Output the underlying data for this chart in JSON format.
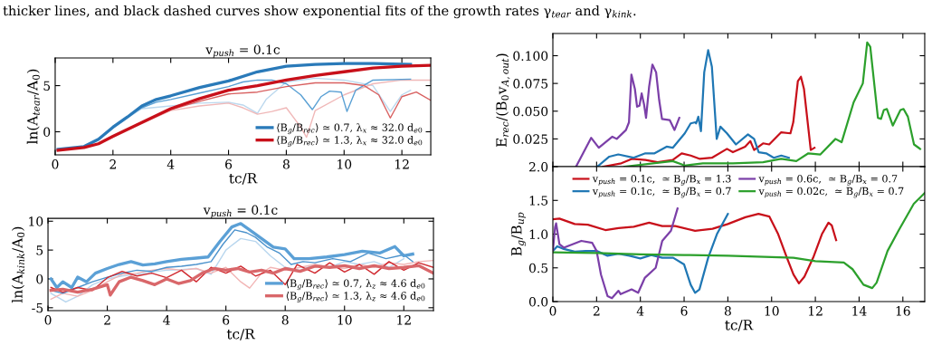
{
  "chart_data": [
    {
      "type": "line",
      "title": "v$_{push}$ = 0.1c",
      "xlabel": "tc/R",
      "ylabel": "ln(A$_{tear}$/A$_{0}$)",
      "annotations": [
        "thicker lines, and black dashed curves show exponential fits of the growth rates γ$_{tear}$ and γ$_{kink}$."
      ],
      "xlim": [
        0,
        13
      ],
      "xticks": [
        0,
        2,
        4,
        6,
        8,
        10,
        12
      ],
      "ylim": [
        -2.5,
        8
      ],
      "yticks": [
        0,
        5
      ],
      "legend": "bottom right",
      "grid": false,
      "series": [
        {
          "color": "#bcd8ee",
          "x": [
            0.1,
            1,
            1.5,
            2,
            2.5,
            3,
            4,
            5,
            6,
            6.5,
            7,
            7.3,
            8,
            9,
            10,
            11,
            11.6,
            12,
            12.3
          ],
          "values": [
            -1.9,
            -1.6,
            -0.8,
            0.4,
            1.5,
            2.5,
            2.8,
            3.1,
            3.2,
            2.9,
            2.0,
            3.5,
            5.4,
            5.8,
            5.6,
            5.0,
            2.2,
            4.0,
            4.5
          ]
        },
        {
          "color": "#f0b8b8",
          "x": [
            0.1,
            1,
            1.5,
            2,
            3,
            4,
            5,
            6,
            6.5,
            7,
            7.5,
            8,
            8.5,
            8.7,
            9,
            10,
            11,
            12,
            13
          ],
          "values": [
            -2.0,
            -1.7,
            -1.3,
            -0.6,
            0.9,
            2.3,
            2.8,
            3.1,
            2.6,
            1.9,
            2.2,
            2.6,
            0.5,
            -0.6,
            2.3,
            4.0,
            5.2,
            5.6,
            5.6
          ]
        },
        {
          "color": "#5aa0d4",
          "x": [
            0.1,
            1,
            1.5,
            2,
            2.5,
            3,
            3.5,
            4,
            5,
            6,
            6.5,
            7,
            7.5,
            8,
            8.5,
            8.9,
            9.2,
            9.5,
            9.9,
            10.1,
            10.4,
            11,
            12.3
          ],
          "values": [
            -1.9,
            -1.6,
            -0.8,
            0.5,
            1.6,
            2.6,
            3.2,
            3.5,
            4.2,
            4.9,
            5.4,
            5.6,
            5.6,
            5.2,
            4.0,
            2.4,
            3.8,
            4.4,
            4.3,
            2.2,
            4.5,
            5.6,
            5.7
          ]
        },
        {
          "color": "#d86060",
          "x": [
            0.1,
            1,
            1.5,
            2,
            3,
            4,
            5,
            6,
            7,
            8,
            9,
            10,
            10.7,
            11.2,
            11.6,
            12,
            12.5,
            13
          ],
          "values": [
            -2.0,
            -1.7,
            -1.3,
            -0.5,
            1.0,
            2.4,
            3.3,
            4.1,
            4.3,
            4.9,
            5.3,
            5.3,
            5.0,
            4.0,
            1.5,
            3.8,
            4.3,
            3.4
          ]
        },
        {
          "name": "⟨B$_{g}$/B$_{rec}$⟩ ≃ 0.7, λ$_{x}$ ≈ 32.0 d$_{e0}$",
          "color": "#2a7ab9",
          "x": [
            0.1,
            1,
            1.5,
            2,
            2.5,
            3,
            3.5,
            4,
            5,
            6,
            7,
            8,
            9,
            10,
            11,
            12.3
          ],
          "values": [
            -1.9,
            -1.6,
            -0.8,
            0.5,
            1.6,
            2.8,
            3.5,
            3.9,
            4.8,
            5.5,
            6.5,
            7.1,
            7.3,
            7.4,
            7.4,
            7.3
          ]
        },
        {
          "name": "⟨B$_{g}$/B$_{rec}$⟩ ≃ 1.3, λ$_{x}$ ≈ 32.0 d$_{e0}$",
          "color": "#c8101a",
          "x": [
            0.1,
            1,
            1.5,
            2,
            3,
            4,
            5,
            6,
            7,
            8,
            9,
            10,
            11,
            12,
            13
          ],
          "values": [
            -2.0,
            -1.7,
            -1.3,
            -0.5,
            1.0,
            2.5,
            3.6,
            4.5,
            5.0,
            5.6,
            6.1,
            6.5,
            6.9,
            7.1,
            7.2
          ]
        }
      ]
    },
    {
      "type": "line",
      "title": "v$_{push}$ = 0.1c",
      "xlabel": "tc/R",
      "ylabel": "ln(A$_{kink}$/A$_{0}$)",
      "xlim": [
        0,
        13
      ],
      "xticks": [
        0,
        2,
        4,
        6,
        8,
        10,
        12
      ],
      "ylim": [
        -5.5,
        10.5
      ],
      "yticks": [
        -5,
        0,
        5,
        10
      ],
      "legend": "bottom right",
      "grid": false,
      "series": [
        {
          "color": "#b8d6ee",
          "x": [
            0.1,
            0.6,
            1,
            1.5,
            2,
            2.5,
            3,
            3.5,
            4,
            4.5,
            5,
            5.5,
            6,
            6.5,
            7,
            7.5,
            8,
            8.5,
            9,
            9.5,
            10,
            10.5,
            11,
            11.5,
            12
          ],
          "values": [
            -2.5,
            -4.0,
            -3.0,
            -1.0,
            0,
            0.5,
            0.8,
            1.2,
            1.5,
            1.6,
            1.8,
            0.8,
            5.0,
            7.0,
            6.5,
            4.0,
            2.0,
            1.5,
            2.5,
            2.0,
            3.0,
            2.5,
            3.0,
            2.0,
            3.5
          ]
        },
        {
          "color": "#f2b5b5",
          "x": [
            0.1,
            0.5,
            1,
            1.5,
            2,
            2.5,
            3,
            3.5,
            4,
            4.5,
            5,
            5.5,
            6,
            6.5,
            6.8,
            7.2,
            7.5,
            8,
            8.5,
            9,
            9.5,
            10,
            10.5,
            11,
            11.5,
            12,
            12.5,
            13
          ],
          "values": [
            -3.5,
            -2.5,
            -3.0,
            -2.0,
            -0.5,
            0.8,
            1.0,
            1.5,
            1.8,
            1.5,
            1.8,
            1.0,
            2.0,
            -0.5,
            -1.6,
            1.0,
            2.0,
            1.5,
            2.0,
            2.5,
            2.0,
            1.8,
            2.5,
            2.0,
            2.8,
            2.5,
            3.0,
            3.2
          ]
        },
        {
          "color": "#4b92cc",
          "x": [
            0.1,
            0.5,
            1,
            1.5,
            2,
            2.5,
            3,
            3.5,
            4,
            4.5,
            5,
            5.5,
            5.9,
            6.3,
            6.7,
            7,
            7.4,
            7.8,
            8.2,
            8.6,
            9,
            9.6,
            10.2,
            10.8,
            11.4,
            12,
            12.3
          ],
          "values": [
            -2.0,
            -2.5,
            -1.5,
            -0.5,
            0.3,
            1.0,
            1.5,
            1.3,
            2.0,
            2.2,
            2.5,
            3.0,
            6.0,
            8.5,
            8.0,
            7.2,
            5.5,
            4.5,
            2.5,
            3.0,
            2.8,
            3.5,
            3.0,
            4.5,
            3.5,
            4.2,
            3.0
          ]
        },
        {
          "color": "#d0282e",
          "x": [
            0.1,
            0.5,
            1,
            1.5,
            2,
            2.5,
            3,
            3.5,
            4,
            4.5,
            5,
            5.5,
            6,
            6.5,
            7,
            7.5,
            8,
            8.4,
            9,
            9.5,
            10,
            10.5,
            11,
            11.5,
            12,
            12.5,
            13
          ],
          "values": [
            -1.5,
            -2.3,
            -1.5,
            -2.0,
            0.2,
            1.3,
            0.5,
            1.0,
            0.2,
            1.5,
            -0.5,
            2.0,
            1.0,
            2.2,
            0.5,
            1.5,
            -1.0,
            2.5,
            1.0,
            2.8,
            1.2,
            2.5,
            0.8,
            3.0,
            1.5,
            2.8,
            2.0
          ]
        },
        {
          "name": "⟨B$_{g}$/B$_{rec}$⟩ ≃ 0.7, λ$_{z}$ ≈ 4.6 d$_{e0}$",
          "color": "#5ba0d6",
          "x": [
            0.1,
            0.3,
            0.5,
            0.8,
            1,
            1.3,
            1.6,
            2,
            2.4,
            2.8,
            3.2,
            3.6,
            4,
            4.5,
            5,
            5.4,
            5.8,
            6.2,
            6.5,
            6.8,
            7.2,
            7.6,
            8,
            8.3,
            8.8,
            9.4,
            10,
            10.6,
            11.2,
            11.7,
            12,
            12.3
          ],
          "values": [
            0,
            -1.5,
            -0.5,
            -1.5,
            0.3,
            -0.5,
            1.0,
            1.8,
            2.5,
            3.0,
            2.4,
            2.6,
            3.0,
            3.4,
            3.6,
            3.8,
            6.5,
            9.0,
            9.6,
            8.5,
            7.0,
            5.5,
            5.2,
            3.5,
            3.5,
            3.8,
            4.2,
            4.8,
            4.5,
            5.6,
            4.0,
            4.3
          ]
        },
        {
          "name": "⟨B$_{g}$/B$_{rec}$⟩ ≃ 1.3, λ$_{z}$ ≈ 4.6 d$_{e0}$",
          "color": "#d9676a",
          "x": [
            0.1,
            0.5,
            1,
            1.5,
            2,
            2.1,
            2.4,
            2.8,
            3.2,
            3.6,
            4,
            4.4,
            4.8,
            5.2,
            5.6,
            6,
            6.4,
            6.8,
            7.2,
            7.6,
            8,
            8.5,
            9,
            9.5,
            10,
            10.5,
            11,
            11.5,
            12,
            12.5,
            13
          ],
          "values": [
            -2.0,
            -1.8,
            -2.3,
            -1.8,
            -1.0,
            -2.8,
            -0.5,
            0.3,
            -0.3,
            -1.0,
            0,
            -0.8,
            -0.3,
            1.0,
            1.8,
            1.5,
            1.8,
            1.2,
            1.5,
            1.0,
            1.8,
            1.3,
            2.2,
            2.0,
            2.3,
            1.8,
            2.3,
            1.8,
            2.0,
            2.3,
            1.0
          ]
        }
      ]
    },
    {
      "type": "line",
      "ylabel": "E$_{rec}$/(B$_{0}$v$_{A,out}$)",
      "tick_labels": "y",
      "grid": false,
      "xlim": [
        0,
        17
      ],
      "xticks": [
        {
          "value": 0,
          "label": null
        },
        {
          "value": 2,
          "label": null
        },
        {
          "value": 4,
          "label": null
        },
        {
          "value": 6,
          "label": null
        },
        {
          "value": 8,
          "label": null
        },
        {
          "value": 10,
          "label": null
        },
        {
          "value": 12,
          "label": null
        },
        {
          "value": 14,
          "label": null
        },
        {
          "value": 16,
          "label": null
        }
      ],
      "ylim": [
        0,
        0.12
      ],
      "yticks": [
        {
          "value": 0.025,
          "label": "0.025"
        },
        {
          "value": 0.05,
          "label": "0.050"
        },
        {
          "value": 0.075,
          "label": "0.075"
        },
        {
          "value": 0.1,
          "label": "0.100"
        }
      ],
      "series": [
        {
          "color": "#c8101a",
          "x": [
            2.3,
            3.13,
            3.61,
            4.23,
            4.79,
            5.48,
            5.89,
            6.3,
            6.72,
            7.27,
            7.96,
            8.23,
            8.79,
            9.03,
            9.2,
            9.61,
            9.89,
            10.44,
            10.86,
            10.99,
            11.2,
            11.34,
            11.48,
            11.79,
            11.96
          ],
          "values": [
            0,
            0.003,
            0.007,
            0.006,
            0.004,
            0.006,
            0.012,
            0.01,
            0.007,
            0.008,
            0.016,
            0.013,
            0.018,
            0.023,
            0.015,
            0.021,
            0.02,
            0.031,
            0.03,
            0.04,
            0.077,
            0.081,
            0.07,
            0.015,
            0.017
          ]
        },
        {
          "color": "#1f77b4",
          "x": [
            2.03,
            2.58,
            2.99,
            3.68,
            4.23,
            4.65,
            5.2,
            5.48,
            6.03,
            6.3,
            6.51,
            6.55,
            6.65,
            6.77,
            6.92,
            7.1,
            7.27,
            7.49,
            7.66,
            7.96,
            8.37,
            8.92,
            9.2,
            9.41,
            9.75,
            10.1,
            10.44,
            10.79
          ],
          "values": [
            0,
            0.009,
            0.011,
            0.008,
            0.012,
            0.012,
            0.018,
            0.017,
            0.03,
            0.039,
            0.04,
            0.039,
            0.045,
            0.032,
            0.085,
            0.105,
            0.09,
            0.025,
            0.036,
            0.03,
            0.02,
            0.029,
            0.025,
            0.013,
            0.012,
            0.008,
            0.01,
            0.008
          ]
        },
        {
          "color": "#7b3fa8",
          "x": [
            1.06,
            1.75,
            2.1,
            2.72,
            2.92,
            3.34,
            3.48,
            3.59,
            3.75,
            3.85,
            3.96,
            4.06,
            4.17,
            4.26,
            4.4,
            4.55,
            4.72,
            4.86,
            4.99,
            5.34,
            5.56,
            5.78
          ],
          "values": [
            0,
            0.026,
            0.017,
            0.027,
            0.025,
            0.033,
            0.04,
            0.083,
            0.07,
            0.054,
            0.055,
            0.066,
            0.056,
            0.044,
            0.072,
            0.092,
            0.085,
            0.06,
            0.043,
            0.042,
            0.033,
            0.044
          ]
        },
        {
          "color": "#2ca02c",
          "x": [
            3.27,
            5.48,
            6.03,
            6.86,
            8.23,
            9.61,
            10.44,
            11.13,
            11.68,
            12.23,
            12.92,
            13.2,
            13.75,
            14.17,
            14.37,
            14.51,
            14.86,
            15.0,
            15.13,
            15.27,
            15.54,
            15.89,
            16.03,
            16.23,
            16.51,
            16.79
          ],
          "values": [
            0,
            0.005,
            0.001,
            0.003,
            0.003,
            0.004,
            0.007,
            0.005,
            0.012,
            0.011,
            0.025,
            0.022,
            0.058,
            0.075,
            0.112,
            0.108,
            0.044,
            0.043,
            0.051,
            0.052,
            0.037,
            0.051,
            0.052,
            0.045,
            0.02,
            0.016
          ]
        }
      ]
    },
    {
      "type": "line",
      "xlabel": "tc/R",
      "ylabel": "B$_{g}$/B$_{up}$",
      "grid": false,
      "legend": "top",
      "xlim": [
        0,
        17
      ],
      "xticks": [
        0,
        2,
        4,
        6,
        8,
        10,
        12,
        14,
        16
      ],
      "ylim": [
        0,
        2.0
      ],
      "yticks": [
        {
          "value": 0,
          "label": "0.0"
        },
        0.5,
        {
          "value": 1,
          "label": "1.0"
        },
        1.5,
        {
          "value": 2,
          "label": "2.0"
        }
      ],
      "series": [
        {
          "name": "v$_{push}$ = 0.1c,  ≃ B$_{g}$/B$_{x}$ = 1.3",
          "color": "#c8101a",
          "x": [
            0,
            0.3,
            1,
            1.6,
            2.4,
            3,
            3.7,
            4.4,
            5,
            5.6,
            6.5,
            7.3,
            8,
            8.8,
            9.4,
            9.9,
            10.3,
            10.7,
            11.0,
            11.25,
            11.5,
            11.9,
            12.3,
            12.6,
            12.75,
            12.95
          ],
          "values": [
            1.22,
            1.23,
            1.15,
            1.14,
            1.06,
            1.09,
            1.11,
            1.17,
            1.12,
            1.12,
            1.05,
            1.08,
            1.15,
            1.25,
            1.3,
            1.26,
            1.0,
            0.65,
            0.4,
            0.27,
            0.37,
            0.65,
            1.0,
            1.17,
            1.13,
            0.91
          ]
        },
        {
          "name": "v$_{push}$ = 0.1c,  ≃ B$_{g}$/B$_{x}$ = 0.7",
          "color": "#1f77b4",
          "x": [
            0,
            0.2,
            0.5,
            1,
            1.5,
            2,
            2.5,
            3,
            3.5,
            4,
            4.5,
            5,
            5.5,
            6,
            6.3,
            6.5,
            6.7,
            7.1,
            7.5,
            8.0
          ],
          "values": [
            0.75,
            0.82,
            0.78,
            0.74,
            0.75,
            0.75,
            0.68,
            0.71,
            0.68,
            0.64,
            0.69,
            0.65,
            0.65,
            0.55,
            0.25,
            0.13,
            0.18,
            0.65,
            1.0,
            1.3
          ]
        },
        {
          "name": "v$_{push}$ = 0.6c,  ≃ B$_{g}$/B$_{x}$ = 0.7",
          "color": "#7b3fa8",
          "x": [
            0,
            0.1,
            0.15,
            0.3,
            0.5,
            1.3,
            1.8,
            2.0,
            2.2,
            2.5,
            2.7,
            3.0,
            3.1,
            3.6,
            3.9,
            4.2,
            4.7,
            5.0,
            5.4,
            5.7
          ],
          "values": [
            0.75,
            1.1,
            1.16,
            0.85,
            0.8,
            0.9,
            0.87,
            0.75,
            0.4,
            0.08,
            0.05,
            0.16,
            0.11,
            0.18,
            0.13,
            0.35,
            0.5,
            0.9,
            1.05,
            1.38
          ]
        },
        {
          "name": "v$_{push}$ = 0.02c,  ≃ B$_{g}$/B$_{x}$ = 0.7",
          "color": "#2ca02c",
          "x": [
            0,
            2,
            4,
            6,
            8,
            10,
            11,
            12,
            13.3,
            13.7,
            14.2,
            14.6,
            14.8,
            15.3,
            15.8,
            16.5,
            17.0
          ],
          "values": [
            0.73,
            0.72,
            0.7,
            0.69,
            0.68,
            0.66,
            0.65,
            0.6,
            0.58,
            0.48,
            0.25,
            0.2,
            0.28,
            0.75,
            1.05,
            1.45,
            1.61
          ]
        }
      ]
    }
  ]
}
